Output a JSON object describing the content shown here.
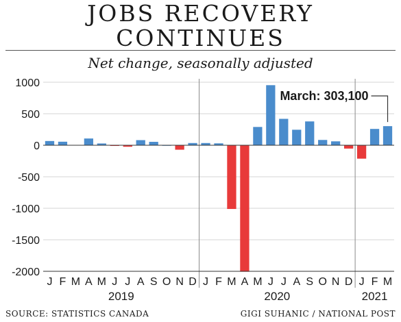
{
  "title_line1": "JOBS RECOVERY",
  "title_line2": "CONTINUES",
  "subtitle": "Net change, seasonally adjusted",
  "source": "SOURCE: STATISTICS CANADA",
  "credit": "GIGI SUHANIC / NATIONAL POST",
  "colors": {
    "positive": "#4a8ccc",
    "negative": "#e83a3a"
  },
  "chart_data": {
    "type": "bar",
    "categories": [
      "J",
      "F",
      "M",
      "A",
      "M",
      "J",
      "J",
      "A",
      "S",
      "O",
      "N",
      "D",
      "J",
      "F",
      "M",
      "A",
      "M",
      "J",
      "J",
      "A",
      "S",
      "O",
      "N",
      "D",
      "J",
      "F",
      "M"
    ],
    "years": [
      {
        "label": "2019",
        "start": 0,
        "end": 11
      },
      {
        "label": "2020",
        "start": 12,
        "end": 23
      },
      {
        "label": "2021",
        "start": 24,
        "end": 26
      }
    ],
    "values": [
      67,
      56,
      0,
      107,
      28,
      -2,
      -24,
      81,
      54,
      2,
      -71,
      35,
      35,
      30,
      -1011,
      -2007,
      290,
      953,
      419,
      246,
      378,
      84,
      62,
      -53,
      -213,
      259,
      303
    ],
    "ylim": [
      -2000,
      1000
    ],
    "yticks": [
      1000,
      500,
      0,
      -500,
      -1000,
      -1500,
      -2000
    ],
    "ytick_labels": [
      "1000",
      "500",
      "0",
      "-500",
      "-1000",
      "-1500",
      "-2000"
    ],
    "annotation": {
      "text": "March: 303,100",
      "index": 26
    },
    "grid": true
  }
}
